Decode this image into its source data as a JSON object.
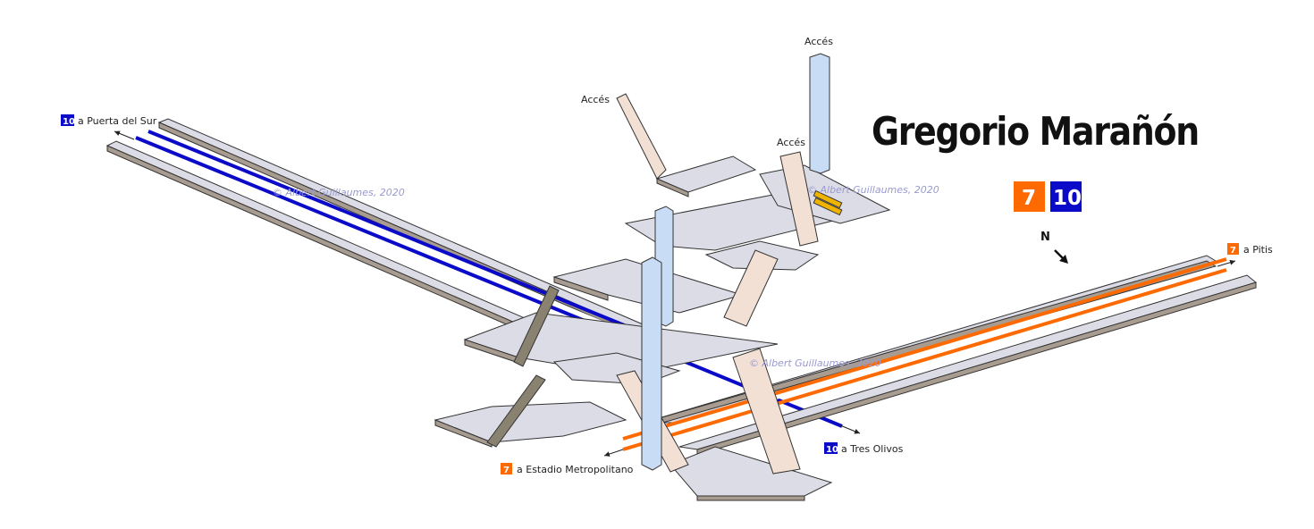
{
  "title": "Gregorio Marañón",
  "lines": [
    {
      "number": "7",
      "color": "#ff6a00"
    },
    {
      "number": "10",
      "color": "#0a0ac8"
    }
  ],
  "compass": {
    "label": "N"
  },
  "access_labels": [
    "Accés",
    "Accés",
    "Accés"
  ],
  "destinations": {
    "puerta_del_sur": {
      "line": "10",
      "text": "a Puerta del Sur"
    },
    "tres_olivos": {
      "line": "10",
      "text": "a Tres Olivos"
    },
    "estadio": {
      "line": "7",
      "text": "a Estadio Metropolitano"
    },
    "pitis": {
      "line": "7",
      "text": "a Pitis"
    }
  },
  "watermark": "© Albert Guillaumes, 2020",
  "colors": {
    "line7": "#ff6a00",
    "line10": "#0a0ac8",
    "platform_top": "#dcdce6",
    "platform_side": "#a89c90",
    "stair": "#f3e0d4",
    "elevator": "#c8dcf5",
    "escalator": "#f0b400"
  }
}
